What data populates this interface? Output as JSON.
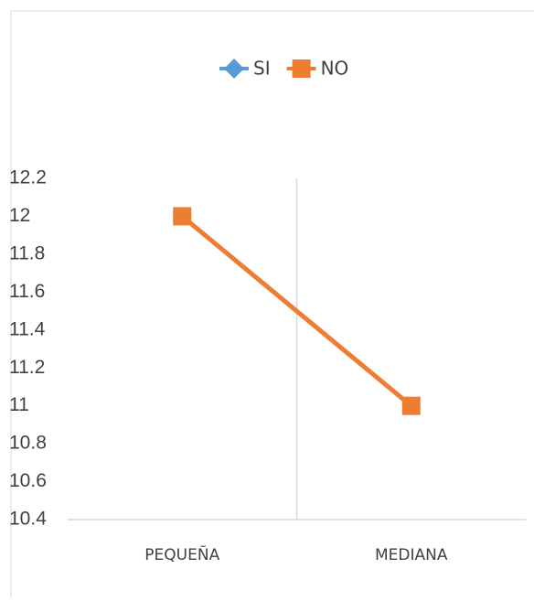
{
  "chart_data": {
    "type": "line",
    "categories": [
      "PEQUEÑA",
      "MEDIANA"
    ],
    "series": [
      {
        "name": "SI",
        "color": "#5b9bd5",
        "marker": "diamond",
        "values": [
          null,
          null
        ]
      },
      {
        "name": "NO",
        "color": "#ed7d31",
        "marker": "square",
        "values": [
          12,
          11
        ]
      }
    ],
    "ylim": [
      10.4,
      12.2
    ],
    "yticks": [
      10.4,
      10.6,
      10.8,
      11,
      11.2,
      11.4,
      11.6,
      11.8,
      12,
      12.2
    ],
    "grid": false,
    "legend": "top"
  }
}
